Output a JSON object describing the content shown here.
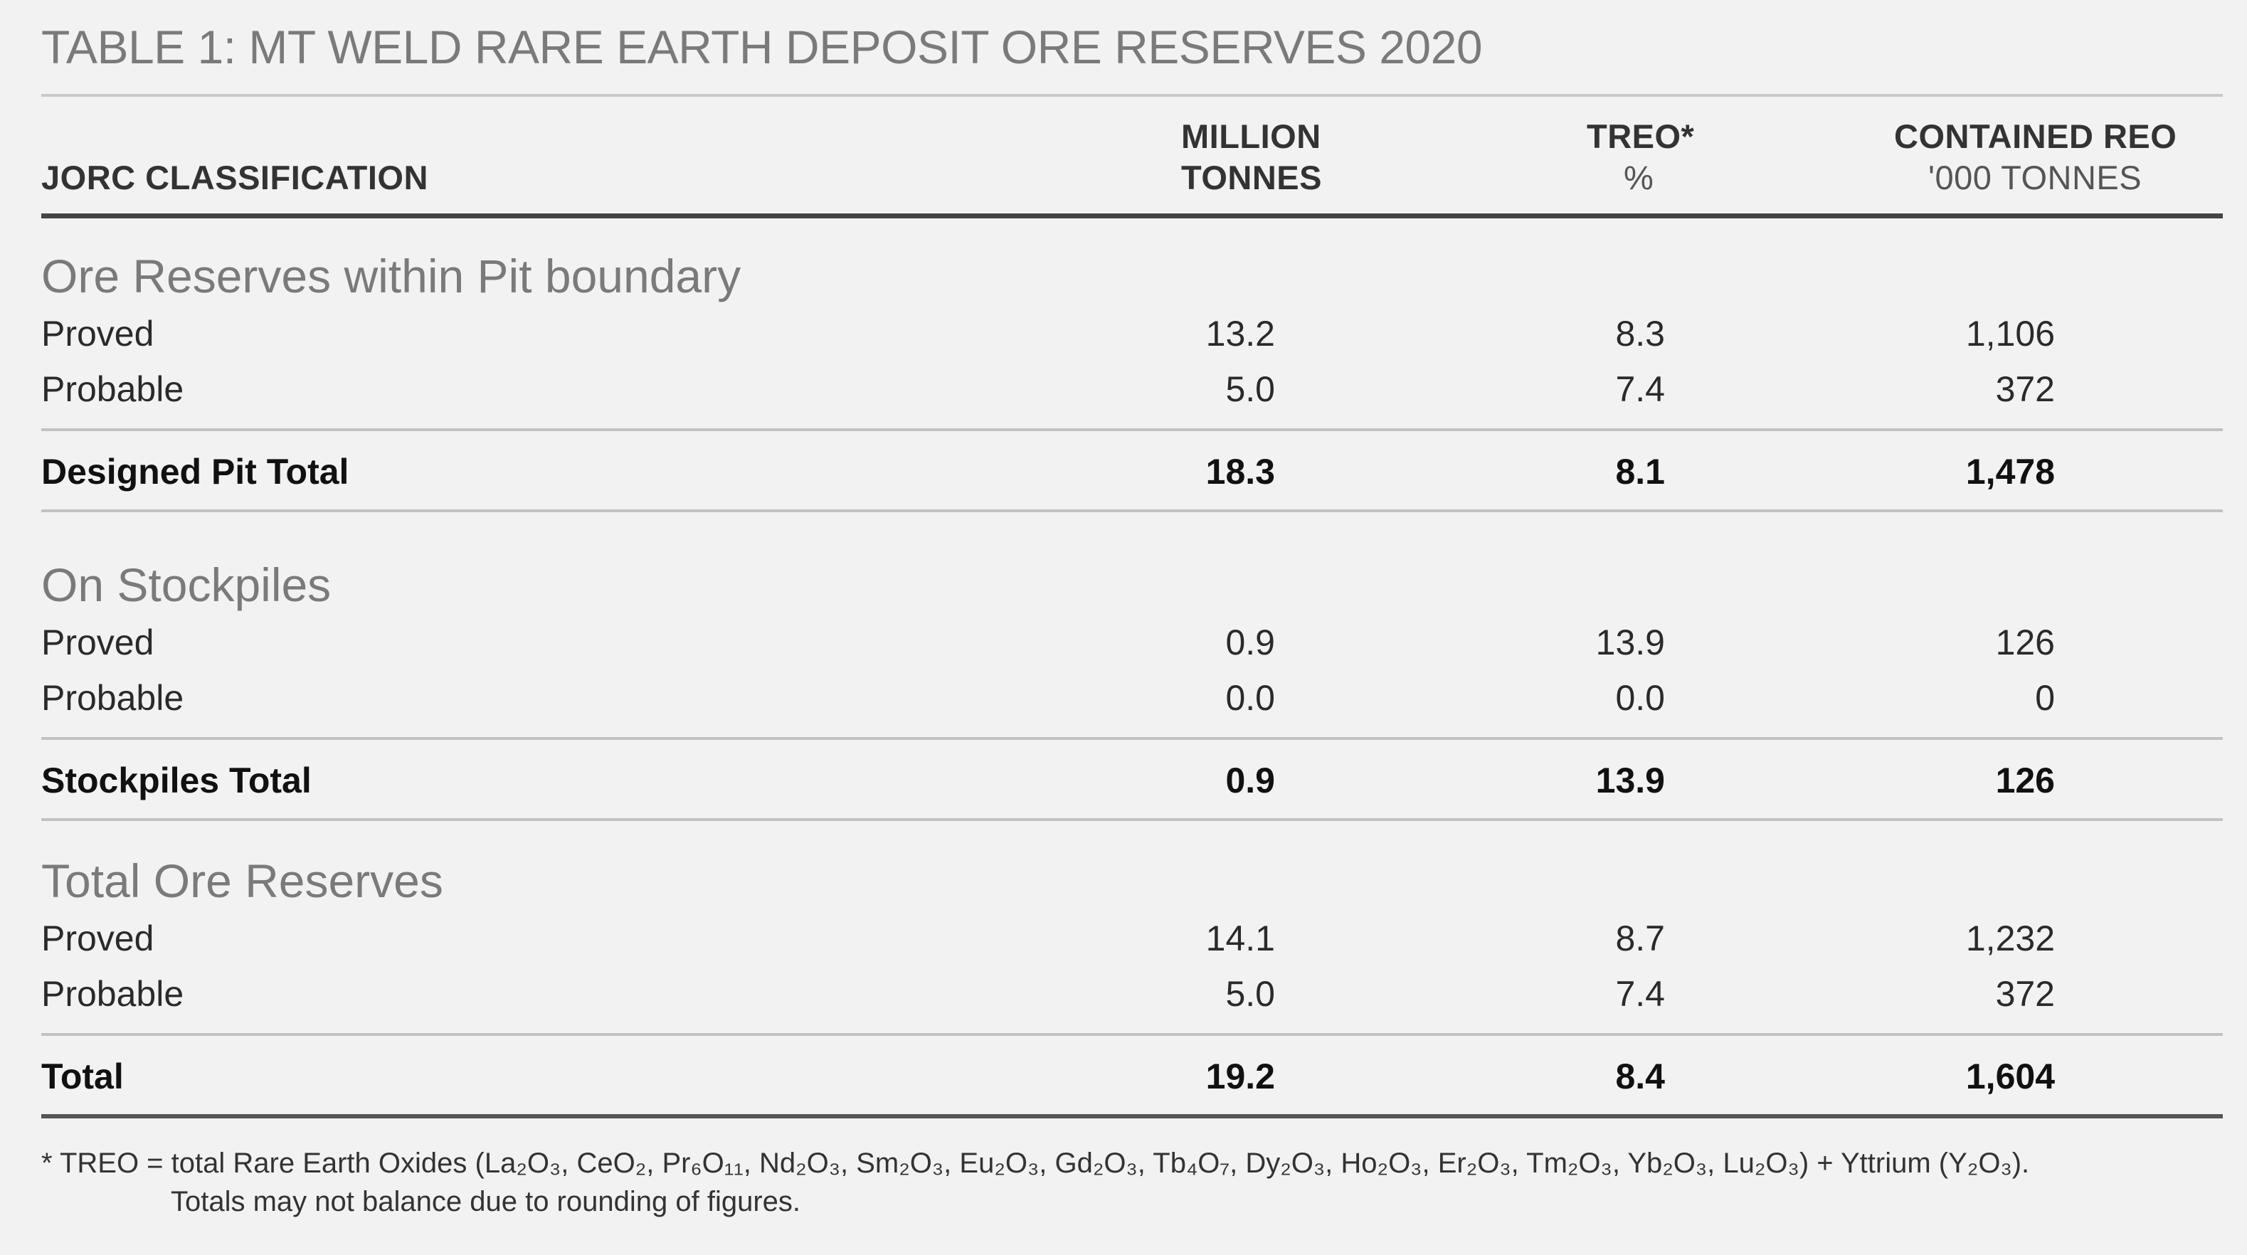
{
  "title": "TABLE 1: MT WELD RARE EARTH DEPOSIT ORE RESERVES 2020",
  "headers": {
    "classification": "JORC CLASSIFICATION",
    "col1_line1": "MILLION",
    "col1_line2": "TONNES",
    "col2_line1": "TREO*",
    "col2_line2": "%",
    "col3_line1": "CONTAINED REO",
    "col3_line2": "'000 TONNES"
  },
  "sections": [
    {
      "title": "Ore Reserves within Pit boundary",
      "rows": [
        {
          "label": "Proved",
          "tonnes": "13.2",
          "treo": "8.3",
          "reo": "1,106"
        },
        {
          "label": "Probable",
          "tonnes": "5.0",
          "treo": "7.4",
          "reo": "372"
        }
      ],
      "total": {
        "label": "Designed Pit Total",
        "tonnes": "18.3",
        "treo": "8.1",
        "reo": "1,478"
      }
    },
    {
      "title": "On Stockpiles",
      "rows": [
        {
          "label": "Proved",
          "tonnes": "0.9",
          "treo": "13.9",
          "reo": "126"
        },
        {
          "label": "Probable",
          "tonnes": "0.0",
          "treo": "0.0",
          "reo": "0"
        }
      ],
      "total": {
        "label": "Stockpiles Total",
        "tonnes": "0.9",
        "treo": "13.9",
        "reo": "126"
      }
    },
    {
      "title": "Total Ore Reserves",
      "rows": [
        {
          "label": "Proved",
          "tonnes": "14.1",
          "treo": "8.7",
          "reo": "1,232"
        },
        {
          "label": "Probable",
          "tonnes": "5.0",
          "treo": "7.4",
          "reo": "372"
        }
      ],
      "total": {
        "label": "Total",
        "tonnes": "19.2",
        "treo": "8.4",
        "reo": "1,604"
      }
    }
  ],
  "footnote": {
    "line1": "* TREO = total Rare Earth Oxides (La₂O₃, CeO₂, Pr₆O₁₁, Nd₂O₃, Sm₂O₃, Eu₂O₃, Gd₂O₃, Tb₄O₇, Dy₂O₃, Ho₂O₃, Er₂O₃, Tm₂O₃, Yb₂O₃, Lu₂O₃) + Yttrium (Y₂O₃).",
    "line2": "Totals may not balance due to rounding of figures."
  }
}
